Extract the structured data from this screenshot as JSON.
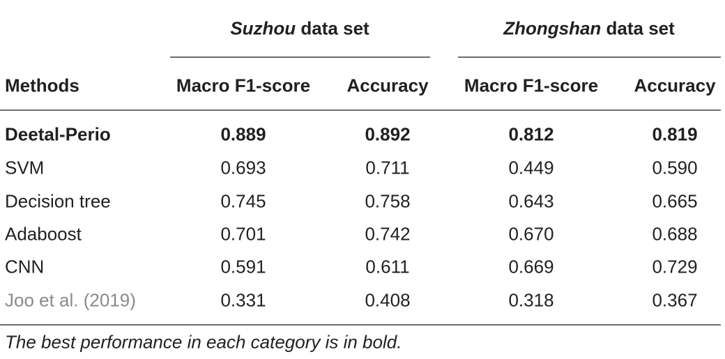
{
  "table": {
    "groups": [
      {
        "italic": "Suzhou",
        "rest": "data set"
      },
      {
        "italic": "Zhongshan",
        "rest": "data set"
      }
    ],
    "columns": [
      "Methods",
      "Macro F1-score",
      "Accuracy",
      "Macro F1-score",
      "Accuracy"
    ],
    "rows": [
      [
        "Deetal-Perio",
        "0.889",
        "0.892",
        "0.812",
        "0.819"
      ],
      [
        "SVM",
        "0.693",
        "0.711",
        "0.449",
        "0.590"
      ],
      [
        "Decision tree",
        "0.745",
        "0.758",
        "0.643",
        "0.665"
      ],
      [
        "Adaboost",
        "0.701",
        "0.742",
        "0.670",
        "0.688"
      ],
      [
        "CNN",
        "0.591",
        "0.611",
        "0.669",
        "0.729"
      ],
      [
        "Joo et al. (2019)",
        "0.331",
        "0.408",
        "0.318",
        "0.367"
      ]
    ],
    "footnote": "The best performance in each category is in bold."
  }
}
